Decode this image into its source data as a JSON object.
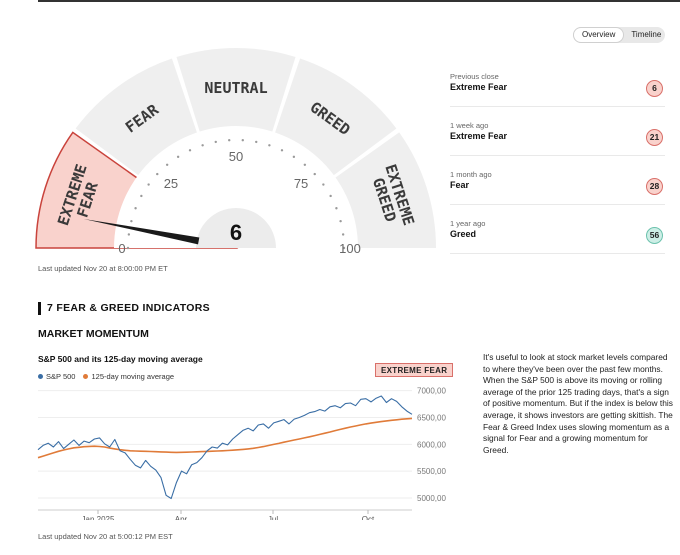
{
  "view_toggle": {
    "overview": "Overview",
    "timeline": "Timeline"
  },
  "gauge": {
    "value": 6,
    "value_label": "6",
    "segments": [
      "EXTREME FEAR",
      "FEAR",
      "NEUTRAL",
      "GREED",
      "EXTREME GREED"
    ],
    "active_segment": "EXTREME FEAR",
    "scale_labels": [
      "0",
      "25",
      "50",
      "75",
      "100"
    ],
    "colors": {
      "active_fill": "#f9d2cc",
      "active_stroke": "#c9433c",
      "inactive_fill": "#efefef",
      "text": "#3a3a3a"
    }
  },
  "gauge_updated": "Last updated Nov 20 at 8:00:00 PM ET",
  "history": [
    {
      "when": "Previous close",
      "rating": "Extreme Fear",
      "score": "6",
      "tone": "fear"
    },
    {
      "when": "1 week ago",
      "rating": "Extreme Fear",
      "score": "21",
      "tone": "fear"
    },
    {
      "when": "1 month ago",
      "rating": "Fear",
      "score": "28",
      "tone": "fear"
    },
    {
      "when": "1 year ago",
      "rating": "Greed",
      "score": "56",
      "tone": "greed"
    }
  ],
  "section_title": "7 FEAR & GREED INDICATORS",
  "indicator": {
    "title": "MARKET MOMENTUM",
    "chart_title": "S&P 500 and its 125-day moving average",
    "badge": "EXTREME FEAR",
    "updated": "Last updated Nov 20 at 5:00:12 PM EST",
    "description": "It's useful to look at stock market levels compared to where they've been over the past few months. When the S&P 500 is above its moving or rolling average of the prior 125 trading days, that's a sign of positive momentum. But if the index is below this average, it shows investors are getting skittish. The Fear & Greed Index uses slowing momentum as a signal for Fear and a growing momentum for Greed."
  },
  "chart_data": {
    "type": "line",
    "x_tick_labels": [
      "Jan 2025",
      "Apr",
      "Jul",
      "Oct"
    ],
    "y_tick_labels": [
      "7000,00",
      "6500,00",
      "6000,00",
      "5500,00",
      "5000,00"
    ],
    "ylim": [
      4850,
      7050
    ],
    "series": [
      {
        "name": "S&P 500",
        "color": "#3a6ea5",
        "values": [
          5900,
          5980,
          6020,
          5950,
          6050,
          5920,
          6000,
          6080,
          5980,
          6060,
          6030,
          6100,
          6120,
          6010,
          5950,
          6090,
          5880,
          5840,
          5720,
          5610,
          5560,
          5700,
          5590,
          5520,
          5380,
          5050,
          4990,
          5280,
          5500,
          5450,
          5620,
          5660,
          5750,
          5880,
          5950,
          5930,
          6020,
          5990,
          6100,
          6180,
          6260,
          6300,
          6250,
          6360,
          6380,
          6300,
          6400,
          6430,
          6460,
          6380,
          6470,
          6500,
          6540,
          6590,
          6610,
          6650,
          6620,
          6700,
          6720,
          6680,
          6760,
          6770,
          6720,
          6840,
          6850,
          6790,
          6860,
          6900,
          6780,
          6850,
          6800,
          6700,
          6620,
          6560
        ]
      },
      {
        "name": "125-day moving average",
        "color": "#e07b39",
        "values": [
          5750,
          5780,
          5810,
          5840,
          5870,
          5895,
          5915,
          5935,
          5945,
          5955,
          5962,
          5965,
          5960,
          5950,
          5930,
          5915,
          5900,
          5888,
          5880,
          5875,
          5872,
          5870,
          5866,
          5862,
          5858,
          5855,
          5852,
          5850,
          5851,
          5853,
          5856,
          5860,
          5864,
          5868,
          5872,
          5876,
          5880,
          5885,
          5890,
          5897,
          5905,
          5915,
          5925,
          5940,
          5958,
          5978,
          5998,
          6018,
          6040,
          6060,
          6080,
          6100,
          6120,
          6140,
          6162,
          6185,
          6208,
          6230,
          6255,
          6278,
          6300,
          6322,
          6342,
          6362,
          6380,
          6396,
          6410,
          6424,
          6436,
          6448,
          6458,
          6468,
          6476,
          6484
        ]
      }
    ]
  }
}
